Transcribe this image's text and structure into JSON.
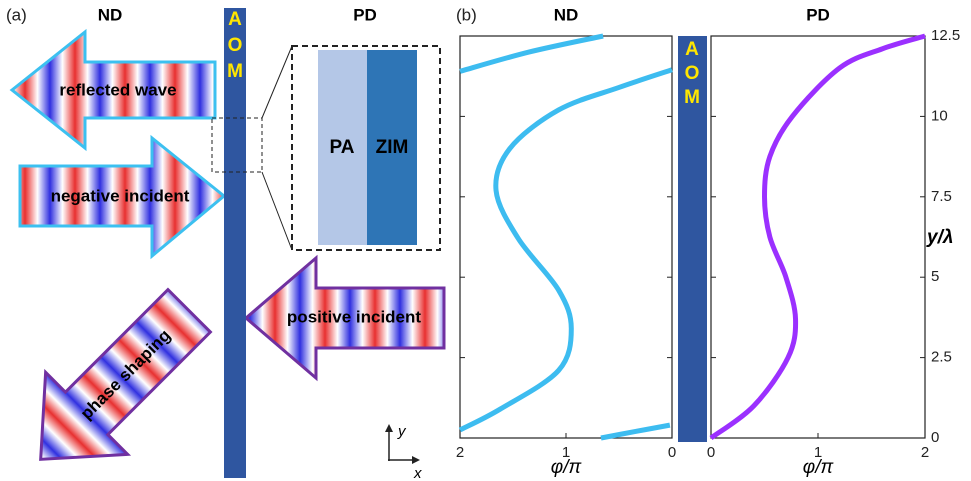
{
  "panel_a": {
    "label": "(a)",
    "nd": "ND",
    "pd": "PD",
    "aom": [
      "A",
      "O",
      "M"
    ],
    "pa": "PA",
    "zim": "ZIM",
    "arrows": [
      "reflected wave",
      "negative incident",
      "positive incident",
      "phase shaping"
    ],
    "axes": {
      "y": "y",
      "x": "x"
    }
  },
  "panel_b": {
    "label": "(b)",
    "aom": [
      "A",
      "O",
      "M"
    ]
  },
  "chart_data": [
    {
      "type": "line",
      "title": "ND",
      "x_label": "φ/π",
      "x": [
        0.67,
        0.35,
        0.02,
        null,
        2,
        1.62,
        1.07,
        0.95,
        1.07,
        1.45,
        1.66,
        1.53,
        1.07,
        0.5,
        0,
        null,
        2,
        1.35,
        0.65
      ],
      "series": [
        {
          "color": "#3dbcf0",
          "values": [
            0,
            0.2,
            0.4,
            null,
            0.25,
            0.9,
            2.1,
            3.4,
            4.6,
            6.2,
            7.7,
            9,
            10.2,
            10.9,
            11.45,
            null,
            11.4,
            12,
            12.5
          ]
        }
      ],
      "xlim": [
        2,
        0
      ],
      "xticks": [
        2,
        1,
        0
      ],
      "ylim": [
        0,
        12.5
      ]
    },
    {
      "type": "line",
      "title": "PD",
      "x_label": "φ/π",
      "y_label": "y/λ",
      "x": [
        0,
        0.4,
        0.72,
        0.79,
        0.7,
        0.55,
        0.5,
        0.55,
        0.76,
        1.2,
        1.6,
        2
      ],
      "series": [
        {
          "color": "#9b30ff",
          "values": [
            0,
            1,
            2.5,
            3.7,
            5,
            6.25,
            7.5,
            8.75,
            10,
            11.5,
            12.1,
            12.5
          ]
        }
      ],
      "xlim": [
        0,
        2
      ],
      "xticks": [
        0,
        1,
        2
      ],
      "ylim": [
        0,
        12.5
      ],
      "yticks": [
        0,
        2.5,
        5,
        7.5,
        10,
        12.5
      ]
    }
  ]
}
